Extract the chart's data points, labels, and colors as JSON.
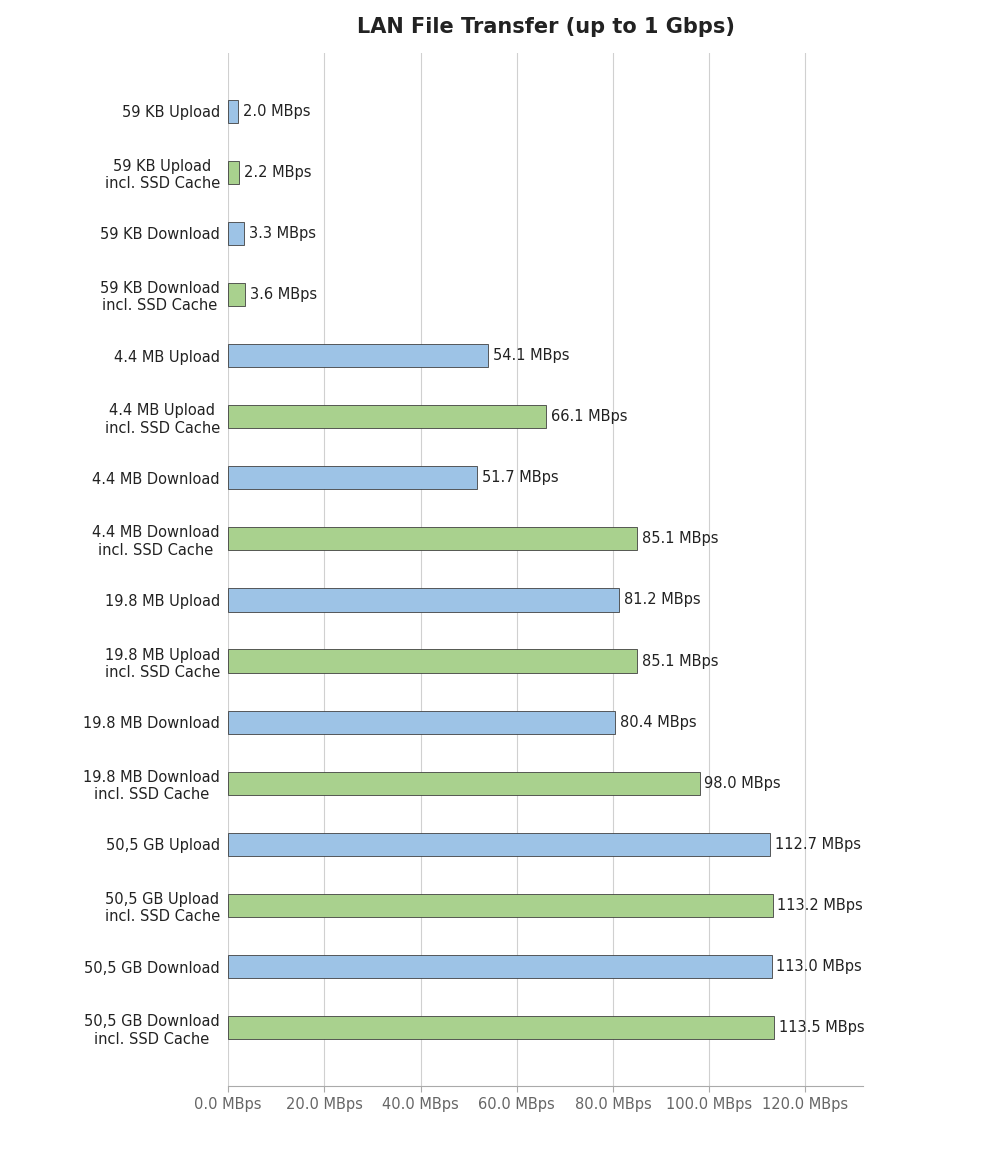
{
  "title": "LAN File Transfer (up to 1 Gbps)",
  "categories": [
    "59 KB Upload",
    "59 KB Upload\nincl. SSD Cache",
    "59 KB Download",
    "59 KB Download\nincl. SSD Cache",
    "4.4 MB Upload",
    "4.4 MB Upload\nincl. SSD Cache",
    "4.4 MB Download",
    "4.4 MB Download\nincl. SSD Cache",
    "19.8 MB Upload",
    "19.8 MB Upload\nincl. SSD Cache",
    "19.8 MB Download",
    "19.8 MB Download\nincl. SSD Cache",
    "50,5 GB Upload",
    "50,5 GB Upload\nincl. SSD Cache",
    "50,5 GB Download",
    "50,5 GB Download\nincl. SSD Cache"
  ],
  "values": [
    2.0,
    2.2,
    3.3,
    3.6,
    54.1,
    66.1,
    51.7,
    85.1,
    81.2,
    85.1,
    80.4,
    98.0,
    112.7,
    113.2,
    113.0,
    113.5
  ],
  "colors": [
    "#9dc3e6",
    "#a9d18e",
    "#9dc3e6",
    "#a9d18e",
    "#9dc3e6",
    "#a9d18e",
    "#9dc3e6",
    "#a9d18e",
    "#9dc3e6",
    "#a9d18e",
    "#9dc3e6",
    "#a9d18e",
    "#9dc3e6",
    "#a9d18e",
    "#9dc3e6",
    "#a9d18e"
  ],
  "labels": [
    "2.0 MBps",
    "2.2 MBps",
    "3.3 MBps",
    "3.6 MBps",
    "54.1 MBps",
    "66.1 MBps",
    "51.7 MBps",
    "85.1 MBps",
    "81.2 MBps",
    "85.1 MBps",
    "80.4 MBps",
    "98.0 MBps",
    "112.7 MBps",
    "113.2 MBps",
    "113.0 MBps",
    "113.5 MBps"
  ],
  "xlim": [
    0,
    132
  ],
  "xticks": [
    0,
    20,
    40,
    60,
    80,
    100,
    120
  ],
  "xticklabels": [
    "0.0 MBps",
    "20.0 MBps",
    "40.0 MBps",
    "60.0 MBps",
    "80.0 MBps",
    "100.0 MBps",
    "120.0 MBps"
  ],
  "background_color": "#ffffff",
  "bar_edge_color": "#404040",
  "title_fontsize": 15,
  "tick_fontsize": 10.5,
  "label_fontsize": 10.5,
  "bar_height": 0.38
}
